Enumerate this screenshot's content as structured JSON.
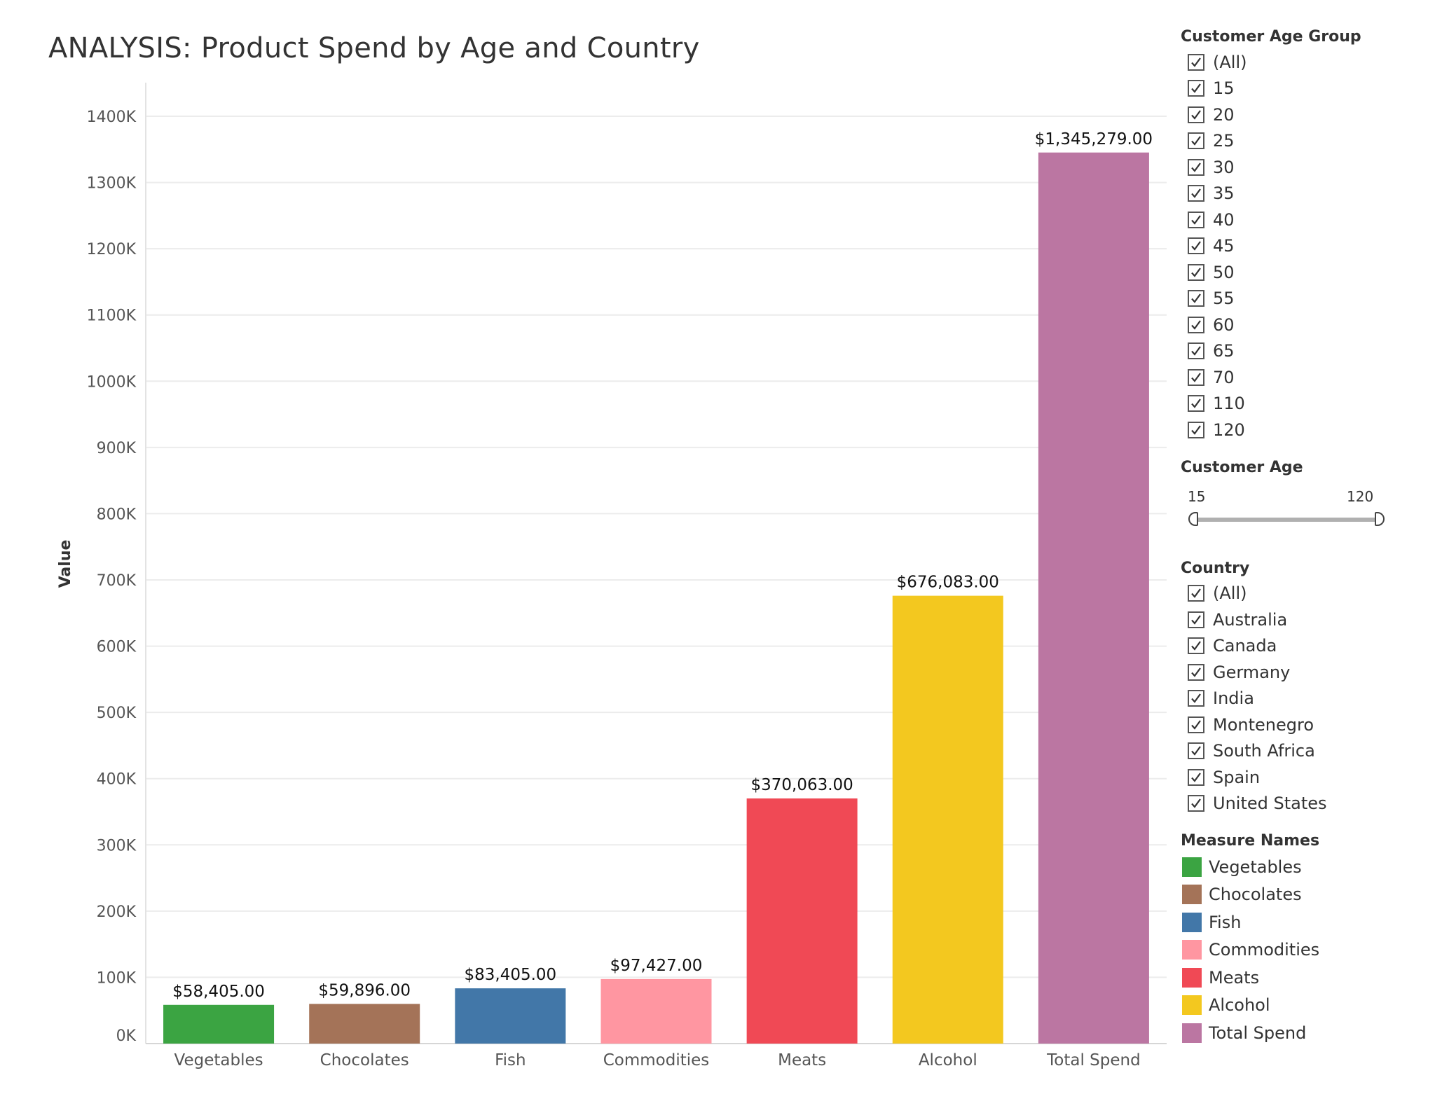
{
  "title": "ANALYSIS: Product Spend by Age and Country",
  "filters": {
    "age_group": {
      "heading": "Customer Age Group",
      "items": [
        "(All)",
        "15",
        "20",
        "25",
        "30",
        "35",
        "40",
        "45",
        "50",
        "55",
        "60",
        "65",
        "70",
        "110",
        "120"
      ]
    },
    "customer_age": {
      "heading": "Customer Age",
      "min_label": "15",
      "max_label": "120",
      "range": [
        15,
        120
      ]
    },
    "country": {
      "heading": "Country",
      "items": [
        "(All)",
        "Australia",
        "Canada",
        "Germany",
        "India",
        "Montenegro",
        "South Africa",
        "Spain",
        "United States"
      ]
    }
  },
  "legend": {
    "heading": "Measure Names",
    "items": [
      {
        "label": "Vegetables",
        "color": "#3ba442"
      },
      {
        "label": "Chocolates",
        "color": "#a47358"
      },
      {
        "label": "Fish",
        "color": "#4277a8"
      },
      {
        "label": "Commodities",
        "color": "#ff96a1"
      },
      {
        "label": "Meats",
        "color": "#f04955"
      },
      {
        "label": "Alcohol",
        "color": "#f3c81f"
      },
      {
        "label": "Total Spend",
        "color": "#bb76a2"
      }
    ]
  },
  "chart_data": {
    "type": "bar",
    "title": "ANALYSIS: Product Spend by Age and Country",
    "xlabel": "",
    "ylabel": "Value",
    "categories": [
      "Vegetables",
      "Chocolates",
      "Fish",
      "Commodities",
      "Meats",
      "Alcohol",
      "Total Spend"
    ],
    "values": [
      58405,
      59896,
      83405,
      97427,
      370063,
      676083,
      1345279
    ],
    "data_labels": [
      "$58,405.00",
      "$59,896.00",
      "$83,405.00",
      "$97,427.00",
      "$370,063.00",
      "$676,083.00",
      "$1,345,279.00"
    ],
    "colors": [
      "#3ba442",
      "#a47358",
      "#4277a8",
      "#ff96a1",
      "#f04955",
      "#f3c81f",
      "#bb76a2"
    ],
    "yticks": [
      0,
      100000,
      200000,
      300000,
      400000,
      500000,
      600000,
      700000,
      800000,
      900000,
      1000000,
      1100000,
      1200000,
      1300000,
      1400000
    ],
    "ytick_labels": [
      "0K",
      "100K",
      "200K",
      "300K",
      "400K",
      "500K",
      "600K",
      "700K",
      "800K",
      "900K",
      "1000K",
      "1100K",
      "1200K",
      "1300K",
      "1400K"
    ],
    "ylim": [
      0,
      1400000
    ],
    "grid": true,
    "legend_position": "right"
  }
}
